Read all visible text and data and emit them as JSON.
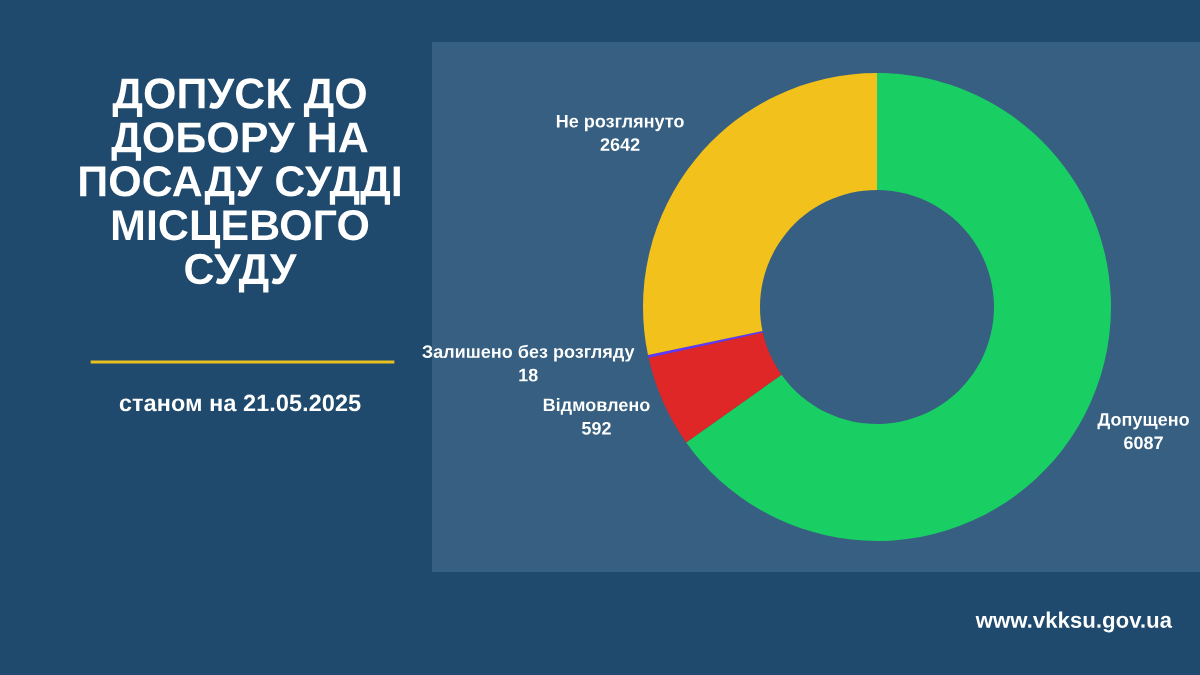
{
  "chart_data": {
    "type": "donut",
    "title": "ДОПУСК ДО ДОБОРУ НА ПОСАДУ СУДДІ МІСЦЕВОГО СУДУ",
    "subtitle": "станом на 21.05.2025",
    "categories": [
      "Допущено",
      "Відмовлено",
      "Залишено без розгляду",
      "Не розглянуто"
    ],
    "values": [
      6087,
      592,
      18,
      2642
    ],
    "colors": [
      "#19cf64",
      "#e02727",
      "#6236ff",
      "#f2c11c"
    ],
    "data_labels": true,
    "annotations": [
      "www.vkksu.gov.ua"
    ]
  }
}
